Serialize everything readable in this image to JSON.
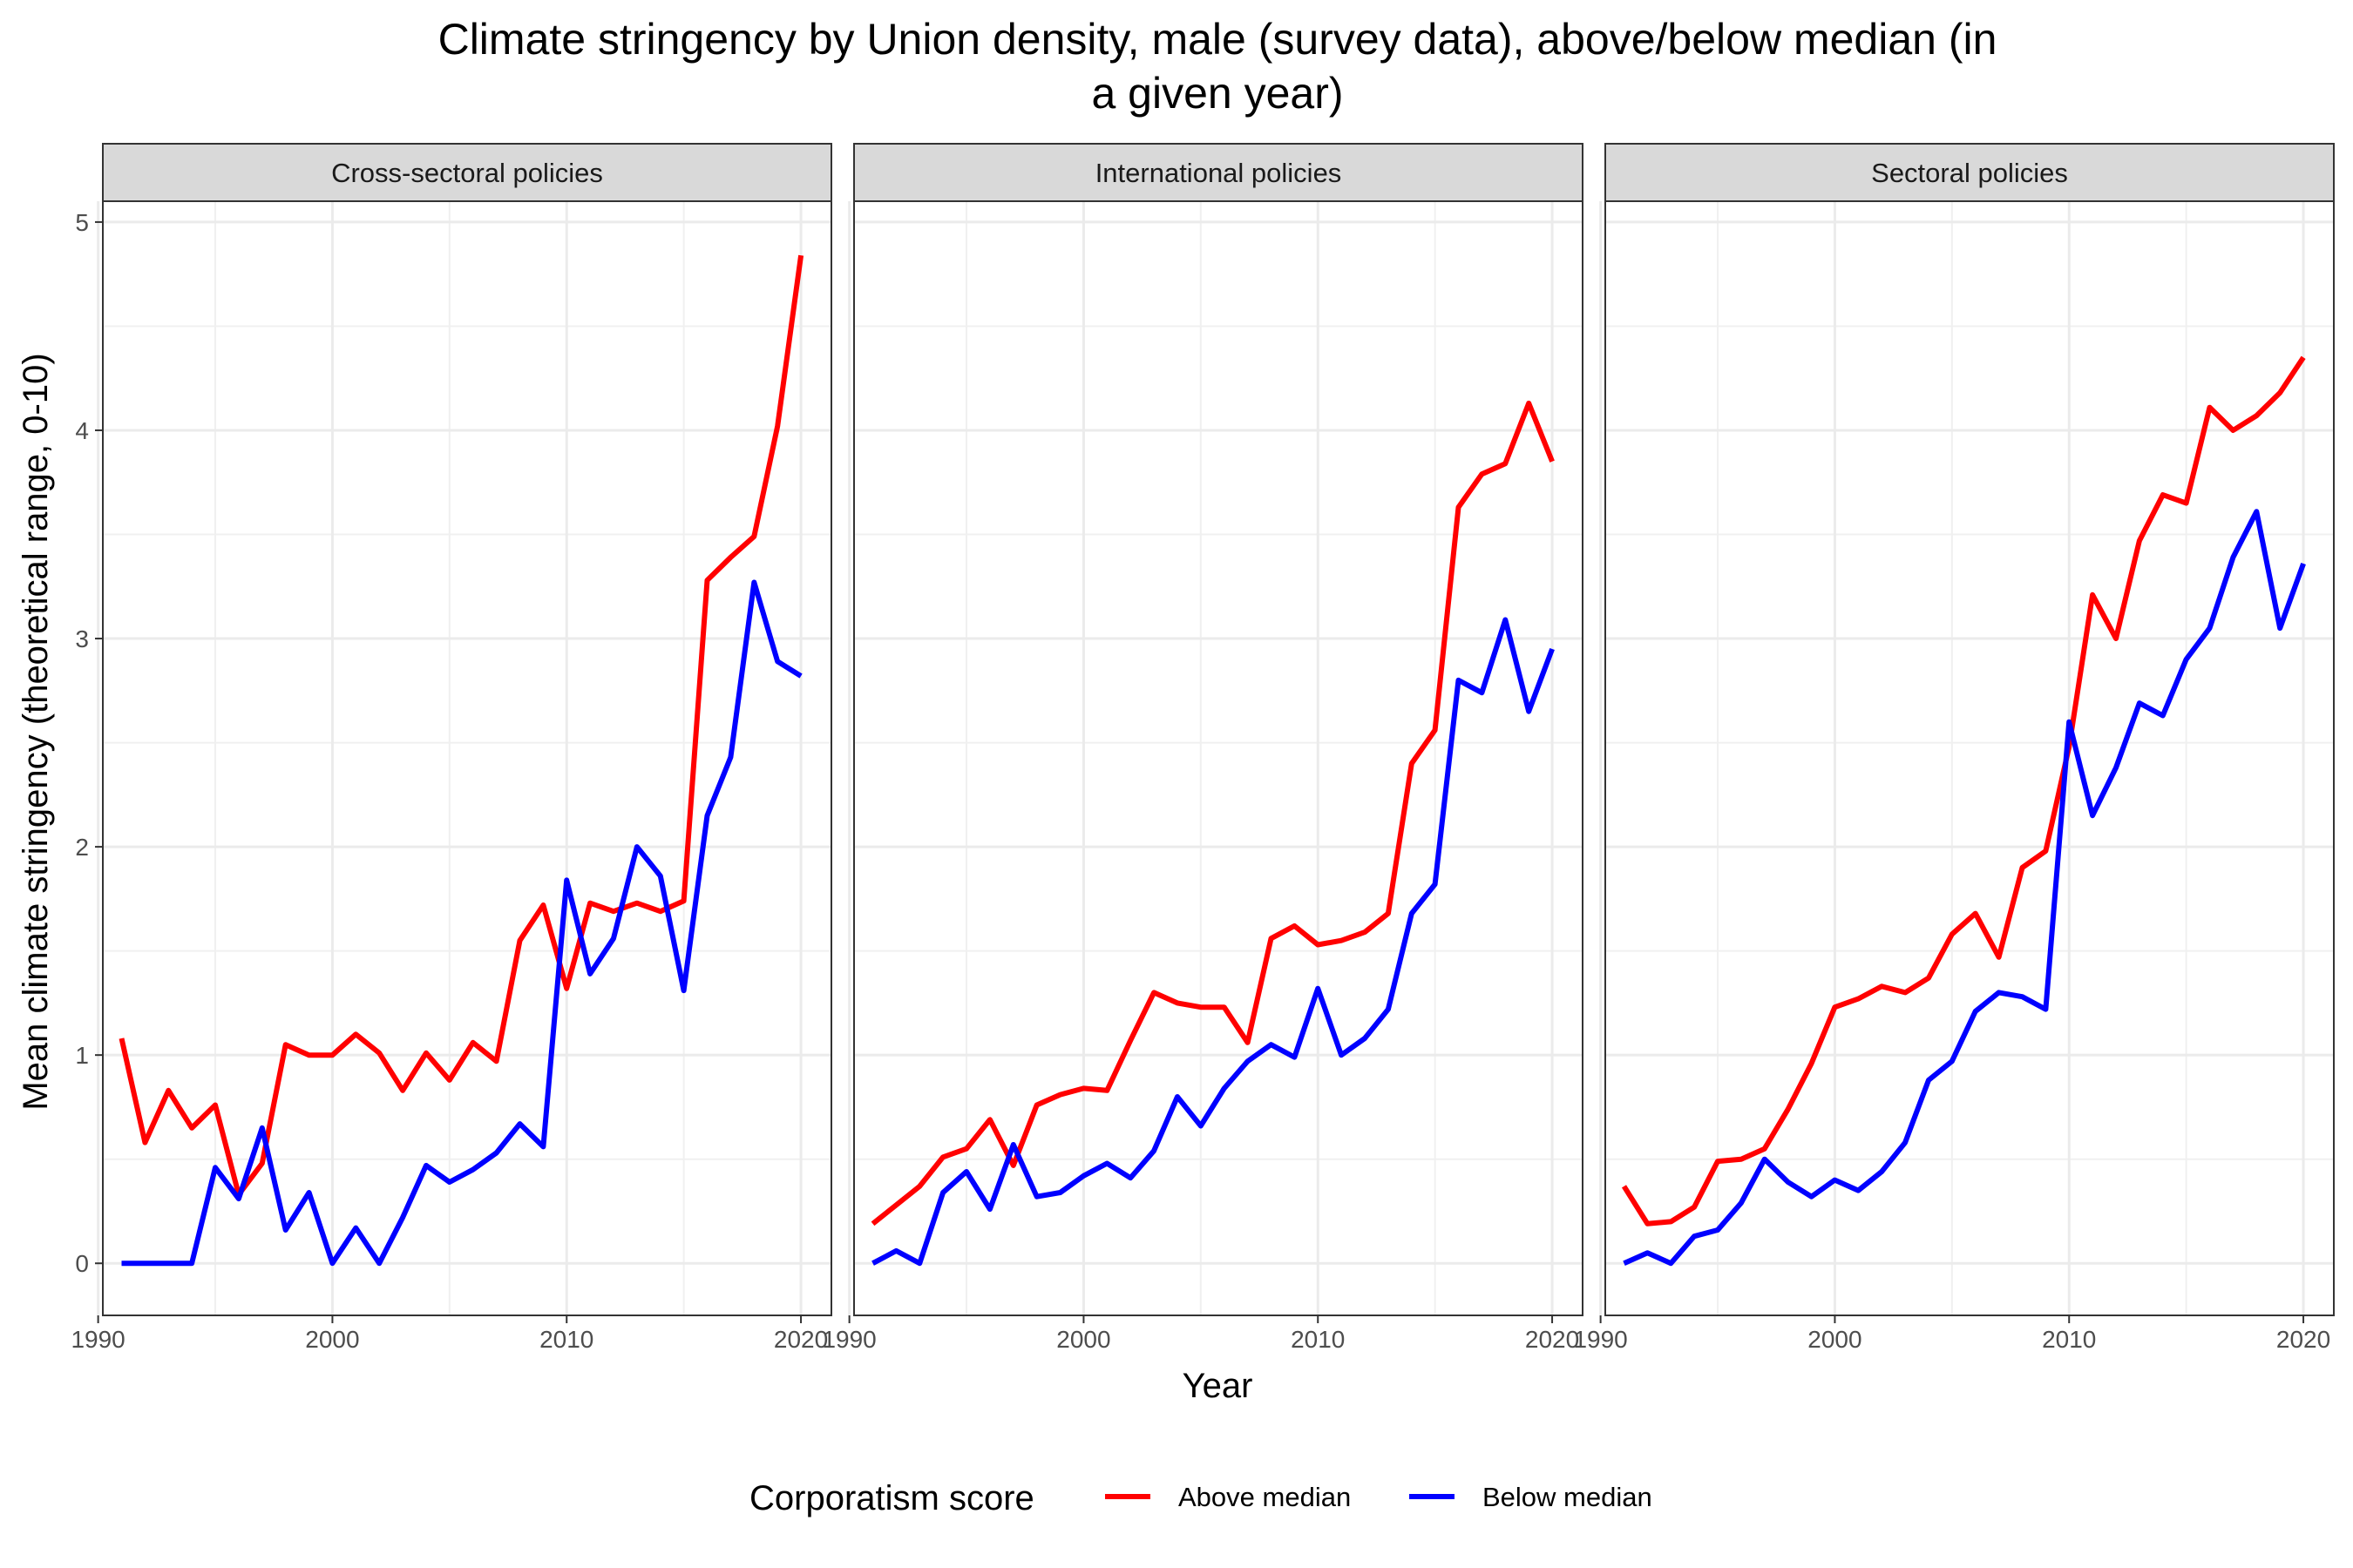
{
  "chart_data": {
    "type": "line",
    "title": "Climate stringency by Union density, male (survey data), above/below median (in a given year)",
    "title_lines": [
      "Climate stringency by Union density, male (survey data), above/below median (in",
      "a given year)"
    ],
    "xlabel": "Year",
    "ylabel": "Mean climate stringency (theoretical range, 0-10)",
    "x_ticks": [
      1990,
      2000,
      2010,
      2020
    ],
    "y_ticks": [
      0,
      1,
      2,
      3,
      4,
      5
    ],
    "xlim": [
      1990.2,
      2021.3
    ],
    "ylim": [
      -0.25,
      5.1
    ],
    "grid": true,
    "legend": {
      "title": "Corporatism score",
      "position": "bottom",
      "entries": [
        {
          "name": "Above median",
          "color": "#ff0000"
        },
        {
          "name": "Below median",
          "color": "#0000ff"
        }
      ]
    },
    "x": [
      1991,
      1992,
      1993,
      1994,
      1995,
      1996,
      1997,
      1998,
      1999,
      2000,
      2001,
      2002,
      2003,
      2004,
      2005,
      2006,
      2007,
      2008,
      2009,
      2010,
      2011,
      2012,
      2013,
      2014,
      2015,
      2016,
      2017,
      2018,
      2019,
      2020
    ],
    "panels": [
      {
        "label": "Cross-sectoral policies",
        "series": [
          {
            "name": "Above median",
            "color": "#ff0000",
            "values": [
              1.08,
              0.58,
              0.83,
              0.65,
              0.76,
              0.33,
              0.48,
              1.05,
              1.0,
              1.0,
              1.1,
              1.01,
              0.83,
              1.01,
              0.88,
              1.06,
              0.97,
              1.55,
              1.72,
              1.32,
              1.73,
              1.69,
              1.73,
              1.69,
              1.74,
              3.28,
              3.39,
              3.49,
              4.02,
              4.84
            ]
          },
          {
            "name": "Below median",
            "color": "#0000ff",
            "values": [
              0.0,
              0.0,
              0.0,
              0.0,
              0.46,
              0.31,
              0.65,
              0.16,
              0.34,
              0.0,
              0.17,
              0.0,
              0.22,
              0.47,
              0.39,
              0.45,
              0.53,
              0.67,
              0.56,
              1.84,
              1.39,
              1.56,
              2.0,
              1.86,
              1.31,
              2.15,
              2.43,
              3.27,
              2.89,
              2.82
            ]
          }
        ]
      },
      {
        "label": "International policies",
        "series": [
          {
            "name": "Above median",
            "color": "#ff0000",
            "values": [
              0.19,
              0.28,
              0.37,
              0.51,
              0.55,
              0.69,
              0.47,
              0.76,
              0.81,
              0.84,
              0.83,
              1.07,
              1.3,
              1.25,
              1.23,
              1.23,
              1.06,
              1.56,
              1.62,
              1.53,
              1.55,
              1.59,
              1.68,
              2.4,
              2.56,
              3.63,
              3.79,
              3.84,
              4.13,
              3.85
            ]
          },
          {
            "name": "Below median",
            "color": "#0000ff",
            "values": [
              0.0,
              0.06,
              0.0,
              0.34,
              0.44,
              0.26,
              0.57,
              0.32,
              0.34,
              0.42,
              0.48,
              0.41,
              0.54,
              0.8,
              0.66,
              0.84,
              0.97,
              1.05,
              0.99,
              1.32,
              1.0,
              1.08,
              1.22,
              1.68,
              1.82,
              2.8,
              2.74,
              3.09,
              2.65,
              2.95
            ]
          }
        ]
      },
      {
        "label": "Sectoral policies",
        "series": [
          {
            "name": "Above median",
            "color": "#ff0000",
            "values": [
              0.37,
              0.19,
              0.2,
              0.27,
              0.49,
              0.5,
              0.55,
              0.74,
              0.96,
              1.23,
              1.27,
              1.33,
              1.3,
              1.37,
              1.58,
              1.68,
              1.47,
              1.9,
              1.98,
              2.48,
              3.21,
              3.0,
              3.47,
              3.69,
              3.65,
              4.11,
              4.0,
              4.07,
              4.18,
              4.35
            ]
          },
          {
            "name": "Below median",
            "color": "#0000ff",
            "values": [
              0.0,
              0.05,
              0.0,
              0.13,
              0.16,
              0.29,
              0.5,
              0.39,
              0.32,
              0.4,
              0.35,
              0.44,
              0.58,
              0.88,
              0.97,
              1.21,
              1.3,
              1.28,
              1.22,
              2.6,
              2.15,
              2.38,
              2.69,
              2.63,
              2.9,
              3.05,
              3.39,
              3.61,
              3.05,
              3.36
            ]
          }
        ]
      }
    ]
  }
}
